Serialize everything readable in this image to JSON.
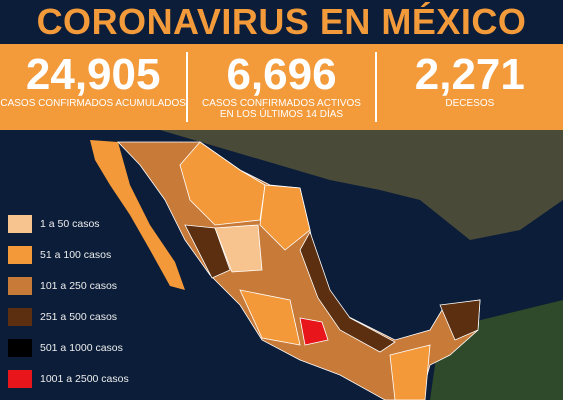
{
  "header": {
    "title": "CORONAVIRUS EN MÉXICO"
  },
  "stats": [
    {
      "number": "24,905",
      "label_lines": [
        "CASOS CONFIRMADOS ACUMULADOS"
      ]
    },
    {
      "number": "6,696",
      "label_lines": [
        "CASOS CONFIRMADOS ACTIVOS",
        "EN LOS ÚLTIMOS 14 DÍAS"
      ]
    },
    {
      "number": "2,271",
      "label_lines": [
        "DECESOS"
      ]
    }
  ],
  "legend": [
    {
      "label": "1 a 50 casos",
      "color": "#f7c48f"
    },
    {
      "label": "51 a 100 casos",
      "color": "#f3993a"
    },
    {
      "label": "101 a 250 casos",
      "color": "#c87a38"
    },
    {
      "label": "251 a 500 casos",
      "color": "#5b2f0f"
    },
    {
      "label": "501 a 1000 casos",
      "color": "#000000"
    },
    {
      "label": "1001 a 2500 casos",
      "color": "#e8161b"
    }
  ]
}
